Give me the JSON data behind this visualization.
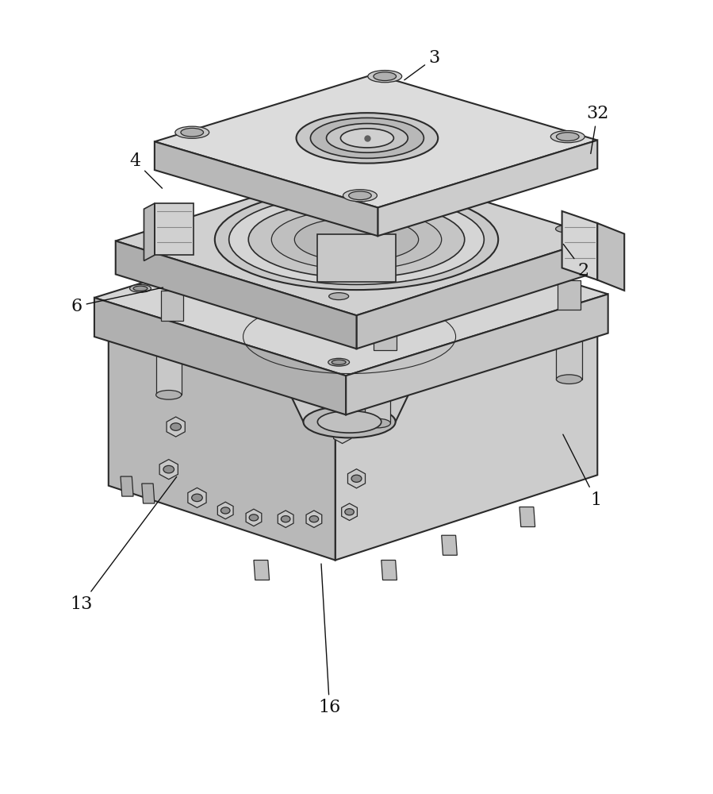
{
  "background_color": "#ffffff",
  "line_color": "#2a2a2a",
  "label_fontsize": 16
}
